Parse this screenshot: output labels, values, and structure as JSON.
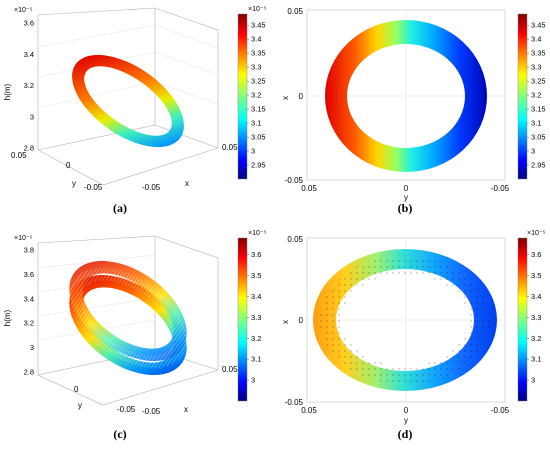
{
  "chart_data": [
    {
      "type": "heatmap",
      "label": "(a)",
      "view": "3d",
      "zlabel": "h(m)",
      "xlabel": "x",
      "ylabel": "y",
      "z_exponent": "×10⁻⁵",
      "z_ticks": [
        "3.6",
        "3.4",
        "3.2",
        "3",
        "2.8"
      ],
      "y_ticks": [
        "0.05",
        "0",
        "-0.05"
      ],
      "x_ticks": [
        "-0.05",
        "0.05"
      ],
      "colorbar_exponent": "×10⁻⁵",
      "colorbar_range": [
        2.9,
        3.49
      ],
      "colorbar_ticks": [
        "3.45",
        "3.4",
        "3.35",
        "3.3",
        "3.25",
        "3.2",
        "3.15",
        "3.1",
        "3.05",
        "3",
        "2.95"
      ],
      "field": {
        "min": 2.92,
        "max": 3.47,
        "trend": "linear in y"
      }
    },
    {
      "type": "heatmap",
      "label": "(b)",
      "view": "top",
      "xlabel": "y",
      "ylabel": "x",
      "x_ticks": [
        "0.05",
        "0",
        "-0.05"
      ],
      "y_ticks": [
        "0.05",
        "0",
        "-0.05"
      ],
      "colorbar_exponent": "×10⁻⁵",
      "colorbar_range": [
        2.9,
        3.49
      ],
      "colorbar_ticks": [
        "3.45",
        "3.4",
        "3.35",
        "3.3",
        "3.25",
        "3.2",
        "3.15",
        "3.1",
        "3.05",
        "3",
        "2.95"
      ],
      "field": {
        "min": 2.92,
        "max": 3.47,
        "trend": "linear in y"
      }
    },
    {
      "type": "heatmap",
      "label": "(c)",
      "view": "3d",
      "zlabel": "h(m)",
      "xlabel": "x",
      "ylabel": "y",
      "z_exponent": "×10⁻⁵",
      "z_ticks": [
        "3.8",
        "3.6",
        "3.4",
        "3.2",
        "3",
        "2.8"
      ],
      "y_ticks": [
        "0",
        "-0.05"
      ],
      "x_ticks": [
        "-0.05",
        "0.05"
      ],
      "colorbar_exponent": "×10⁻⁵",
      "colorbar_range": [
        2.9,
        3.68
      ],
      "colorbar_ticks": [
        "3.6",
        "3.5",
        "3.4",
        "3.3",
        "3.2",
        "3.1",
        "3"
      ],
      "field": {
        "min": 2.95,
        "max": 3.65,
        "trend": "linear in y, textured"
      }
    },
    {
      "type": "heatmap",
      "label": "(d)",
      "view": "top",
      "xlabel": "y",
      "ylabel": "x",
      "x_ticks": [
        "0.05",
        "0",
        "-0.05"
      ],
      "y_ticks": [
        "0.05",
        "0",
        "-0.05"
      ],
      "colorbar_exponent": "×10⁻⁵",
      "colorbar_range": [
        2.9,
        3.68
      ],
      "colorbar_ticks": [
        "3.6",
        "3.5",
        "3.4",
        "3.3",
        "3.2",
        "3.1",
        "3"
      ],
      "field": {
        "min": 2.96,
        "max": 3.55,
        "trend": "linear in y, dotted pattern"
      }
    }
  ]
}
